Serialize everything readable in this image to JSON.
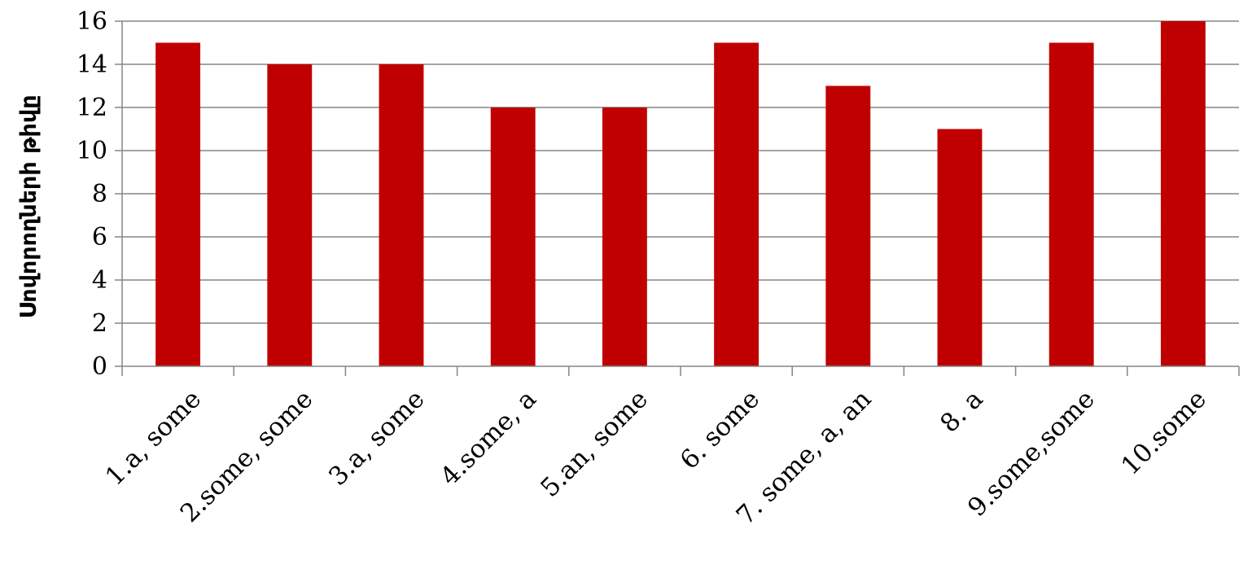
{
  "chart_data": {
    "type": "bar",
    "categories": [
      "1.a, some",
      "2.some, some",
      "3.a, some",
      "4.some, a",
      "5.an, some",
      "6. some",
      "7. some, a, an",
      "8. a",
      "9.some,some",
      "10.some"
    ],
    "values": [
      15,
      14,
      14,
      12,
      12,
      15,
      13,
      11,
      15,
      16
    ],
    "title": "",
    "xlabel": "",
    "ylabel": "Սովորողների թիվը",
    "ylim": [
      0,
      16
    ],
    "yticks": [
      0,
      2,
      4,
      6,
      8,
      10,
      12,
      14,
      16
    ],
    "grid": true,
    "legend": "none",
    "colors": {
      "bar": "#c00000",
      "grid": "#868686",
      "axis": "#868686",
      "text": "#000000"
    }
  }
}
